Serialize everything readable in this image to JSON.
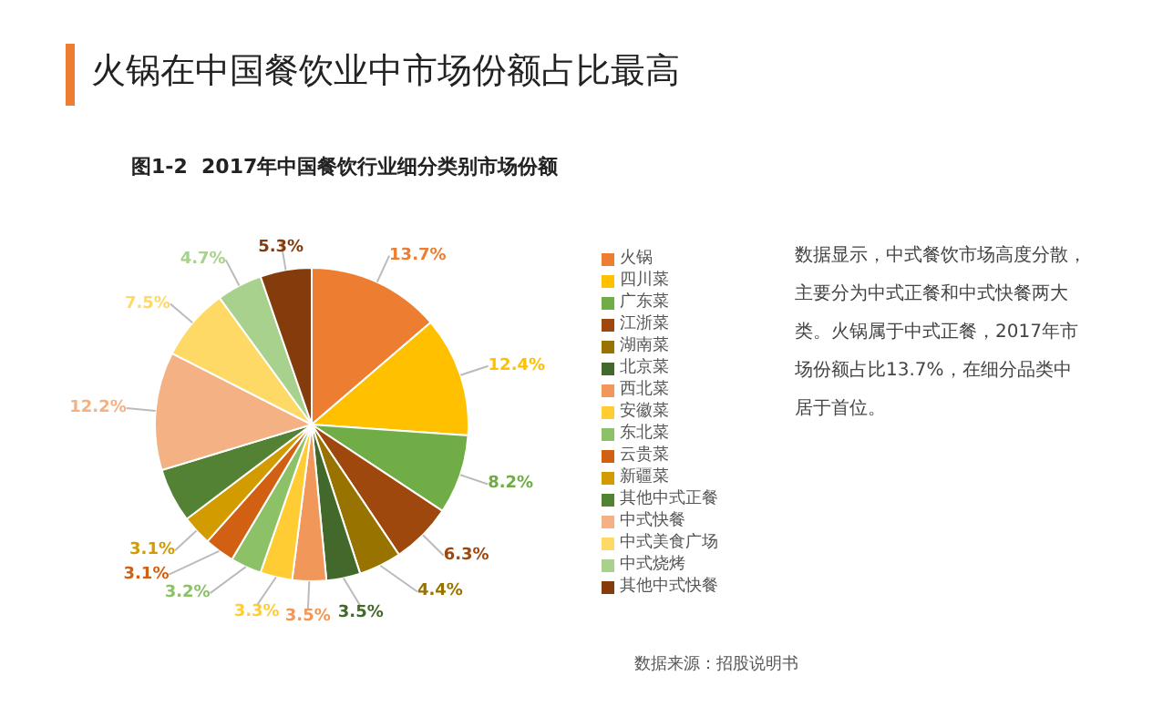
{
  "chart_data": {
    "type": "pie",
    "title": "火锅在中国餐饮业中市场份额占比最高",
    "subtitle": "图1-2  2017年中国餐饮行业细分类别市场份额",
    "categories": [
      "火锅",
      "四川菜",
      "广东菜",
      "江浙菜",
      "湖南菜",
      "北京菜",
      "西北菜",
      "安徽菜",
      "东北菜",
      "云贵菜",
      "新疆菜",
      "其他中式正餐",
      "中式快餐",
      "中式美食广场",
      "中式烧烤",
      "其他中式快餐"
    ],
    "values": [
      13.7,
      12.4,
      8.2,
      6.3,
      4.4,
      3.5,
      3.5,
      3.3,
      3.2,
      3.1,
      3.1,
      5.6,
      12.2,
      7.5,
      4.7,
      5.3
    ],
    "value_labels": [
      "13.7%",
      "12.4%",
      "8.2%",
      "6.3%",
      "4.4%",
      "3.5%",
      "3.5%",
      "3.3%",
      "3.2%",
      "3.1%",
      "3.1%",
      null,
      "12.2%",
      "7.5%",
      "4.7%",
      "5.3%"
    ],
    "colors": [
      "#ed7d31",
      "#ffc000",
      "#70ad47",
      "#9e480e",
      "#997300",
      "#43682b",
      "#f1975a",
      "#ffcd33",
      "#8cc168",
      "#d26012",
      "#d29c00",
      "#548235",
      "#f4b183",
      "#ffd966",
      "#a9d18e",
      "#843c0c"
    ],
    "legend": "right",
    "annotations": [
      "数据显示，中式餐饮市场高度分散，主要分为中式正餐和中式快餐两大类。火锅属于中式正餐，2017年市场份额占比13.7%，在细分品类中居于首位。",
      "数据来源：招股说明书"
    ]
  }
}
